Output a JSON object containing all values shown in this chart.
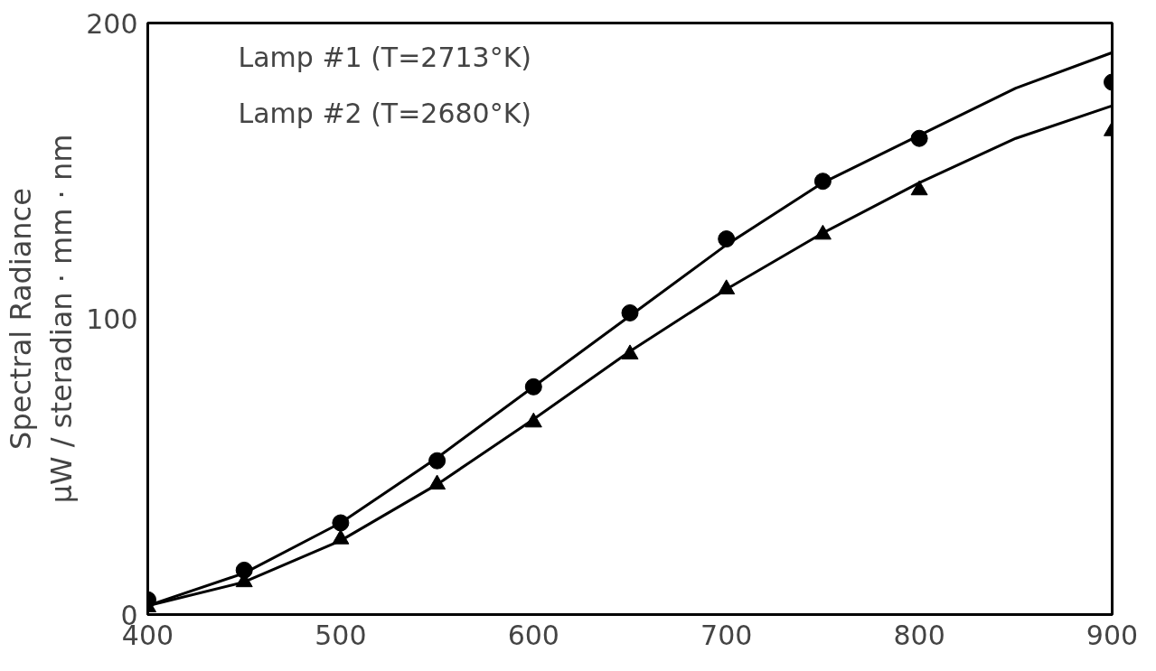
{
  "chart_data": {
    "type": "scatter",
    "ylabel": "Spectral Radiance\nμW / steradian · mm · nm",
    "x": [
      400,
      450,
      500,
      550,
      600,
      650,
      700,
      750,
      800,
      900
    ],
    "series": [
      {
        "type": "line",
        "color": "#000000",
        "marker": "none",
        "x": [
          400,
          450,
          500,
          550,
          600,
          650,
          700,
          750,
          800,
          850,
          900
        ],
        "values": [
          3,
          14,
          31,
          53,
          77,
          101,
          125,
          146,
          162,
          178,
          190
        ]
      },
      {
        "type": "line",
        "color": "#000000",
        "marker": "none",
        "x": [
          400,
          450,
          500,
          550,
          600,
          650,
          700,
          750,
          800,
          850,
          900
        ],
        "values": [
          3,
          11,
          25,
          44,
          66,
          89,
          110,
          129,
          146,
          161,
          172
        ]
      },
      {
        "color": "#000000",
        "marker": "circle",
        "values": [
          5,
          15,
          31,
          52,
          77,
          102,
          127,
          146.5,
          161,
          180
        ]
      },
      {
        "color": "#000000",
        "marker": "triangle",
        "values": [
          2.5,
          11,
          25.5,
          44,
          65,
          88,
          110,
          128.5,
          143.5,
          163.5
        ]
      }
    ],
    "annotations": [
      "Lamp #1 (T=2713°K)",
      "Lamp #2 (T=2680°K)"
    ],
    "xlim": [
      400,
      900
    ],
    "ylim": [
      0,
      200
    ],
    "xticks": [
      400,
      500,
      600,
      700,
      800,
      900
    ],
    "yticks": [
      0,
      100,
      200
    ],
    "grid": false
  }
}
